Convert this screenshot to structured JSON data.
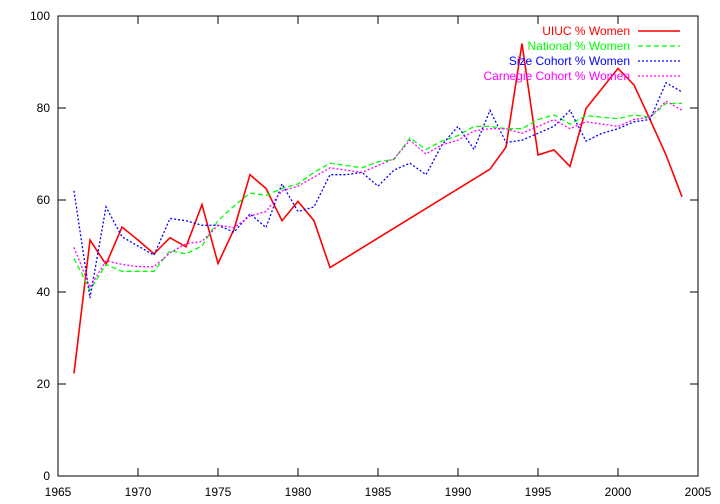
{
  "chart_data": {
    "type": "line",
    "title": "",
    "xlabel": "",
    "ylabel": "",
    "xlim": [
      1965,
      2005
    ],
    "ylim": [
      0,
      100
    ],
    "x_ticks": [
      1965,
      1970,
      1975,
      1980,
      1985,
      1990,
      1995,
      2000,
      2005
    ],
    "y_ticks": [
      0,
      20,
      40,
      60,
      80,
      100
    ],
    "x_tick_labels": [
      "1965",
      "1970",
      "1975",
      "1980",
      "1985",
      "1990",
      "1995",
      "2000",
      "2005"
    ],
    "y_tick_labels": [
      "0",
      "20",
      "40",
      "60",
      "80",
      "100"
    ],
    "grid": false,
    "legend_position": "top-right",
    "series": [
      {
        "name": "UIUC % Women",
        "color": "#ff0000",
        "dash": "solid",
        "points": [
          [
            1966,
            22.3
          ],
          [
            1967,
            51.3
          ],
          [
            1968,
            46.0
          ],
          [
            1969,
            54.1
          ],
          [
            1970,
            51.3
          ],
          [
            1971,
            48.3
          ],
          [
            1972,
            51.8
          ],
          [
            1973,
            49.8
          ],
          [
            1974,
            59.0
          ],
          [
            1975,
            46.2
          ],
          [
            1976,
            53.6
          ],
          [
            1977,
            65.5
          ],
          [
            1978,
            62.5
          ],
          [
            1979,
            55.5
          ],
          [
            1980,
            59.7
          ],
          [
            1981,
            55.5
          ],
          [
            1982,
            45.3
          ],
          [
            1992,
            66.7
          ],
          [
            1993,
            71.5
          ],
          [
            1994,
            94.0
          ],
          [
            1995,
            69.8
          ],
          [
            1996,
            70.9
          ],
          [
            1997,
            67.3
          ],
          [
            1998,
            79.9
          ],
          [
            2000,
            88.6
          ],
          [
            2001,
            85.0
          ],
          [
            2002,
            77.5
          ],
          [
            2003,
            69.8
          ],
          [
            2004,
            60.7
          ]
        ]
      },
      {
        "name": "National % Women",
        "color": "#00ff00",
        "dash": "dashed",
        "points": [
          [
            1966,
            47.3
          ],
          [
            1967,
            40.4
          ],
          [
            1968,
            46.0
          ],
          [
            1969,
            44.5
          ],
          [
            1970,
            44.5
          ],
          [
            1971,
            44.5
          ],
          [
            1972,
            49.0
          ],
          [
            1973,
            48.3
          ],
          [
            1974,
            50.0
          ],
          [
            1975,
            55.5
          ],
          [
            1976,
            58.7
          ],
          [
            1977,
            61.5
          ],
          [
            1978,
            61.0
          ],
          [
            1979,
            62.5
          ],
          [
            1980,
            63.5
          ],
          [
            1981,
            66.0
          ],
          [
            1982,
            68.0
          ],
          [
            1983,
            67.5
          ],
          [
            1984,
            67.0
          ],
          [
            1985,
            68.3
          ],
          [
            1986,
            68.8
          ],
          [
            1987,
            73.5
          ],
          [
            1988,
            71.0
          ],
          [
            1989,
            72.8
          ],
          [
            1990,
            74.0
          ],
          [
            1991,
            76.0
          ],
          [
            1992,
            76.0
          ],
          [
            1993,
            75.5
          ],
          [
            1994,
            75.5
          ],
          [
            1995,
            77.5
          ],
          [
            1996,
            78.5
          ],
          [
            1997,
            76.5
          ],
          [
            1998,
            78.3
          ],
          [
            1999,
            78.0
          ],
          [
            2000,
            77.7
          ],
          [
            2001,
            78.5
          ],
          [
            2002,
            78.0
          ],
          [
            2003,
            81.0
          ],
          [
            2004,
            81.0
          ]
        ]
      },
      {
        "name": "Size Cohort % Women",
        "color": "#0000ff",
        "dash": "dotted",
        "points": [
          [
            1966,
            62.0
          ],
          [
            1967,
            38.7
          ],
          [
            1968,
            58.5
          ],
          [
            1969,
            52.0
          ],
          [
            1970,
            50.0
          ],
          [
            1971,
            48.0
          ],
          [
            1972,
            56.0
          ],
          [
            1973,
            55.5
          ],
          [
            1974,
            54.5
          ],
          [
            1975,
            54.5
          ],
          [
            1976,
            53.0
          ],
          [
            1977,
            57.0
          ],
          [
            1978,
            54.0
          ],
          [
            1979,
            63.5
          ],
          [
            1980,
            57.5
          ],
          [
            1981,
            58.5
          ],
          [
            1982,
            65.5
          ],
          [
            1983,
            65.5
          ],
          [
            1984,
            66.0
          ],
          [
            1985,
            63.0
          ],
          [
            1986,
            66.5
          ],
          [
            1987,
            68.0
          ],
          [
            1988,
            65.5
          ],
          [
            1989,
            72.0
          ],
          [
            1990,
            76.0
          ],
          [
            1991,
            71.0
          ],
          [
            1992,
            79.5
          ],
          [
            1993,
            72.5
          ],
          [
            1994,
            73.0
          ],
          [
            1995,
            74.5
          ],
          [
            1996,
            76.0
          ],
          [
            1997,
            79.5
          ],
          [
            1998,
            72.8
          ],
          [
            1999,
            74.5
          ],
          [
            2000,
            75.5
          ],
          [
            2001,
            77.0
          ],
          [
            2002,
            77.5
          ],
          [
            2003,
            85.5
          ],
          [
            2004,
            83.5
          ]
        ]
      },
      {
        "name": "Carnegie Cohort % Women",
        "color": "#ff00ff",
        "dash": "dotted",
        "points": [
          [
            1966,
            49.7
          ],
          [
            1967,
            41.0
          ],
          [
            1968,
            46.8
          ],
          [
            1969,
            46.0
          ],
          [
            1970,
            45.5
          ],
          [
            1971,
            45.5
          ],
          [
            1972,
            48.5
          ],
          [
            1973,
            50.5
          ],
          [
            1974,
            51.0
          ],
          [
            1975,
            54.5
          ],
          [
            1976,
            54.0
          ],
          [
            1977,
            56.5
          ],
          [
            1978,
            57.5
          ],
          [
            1979,
            62.0
          ],
          [
            1980,
            63.0
          ],
          [
            1981,
            65.0
          ],
          [
            1982,
            67.0
          ],
          [
            1983,
            66.5
          ],
          [
            1984,
            66.0
          ],
          [
            1985,
            67.5
          ],
          [
            1986,
            69.0
          ],
          [
            1987,
            73.0
          ],
          [
            1988,
            70.0
          ],
          [
            1989,
            72.0
          ],
          [
            1990,
            73.0
          ],
          [
            1991,
            75.0
          ],
          [
            1992,
            75.5
          ],
          [
            1993,
            75.5
          ],
          [
            1994,
            74.5
          ],
          [
            1995,
            76.0
          ],
          [
            1996,
            77.5
          ],
          [
            1997,
            75.5
          ],
          [
            1998,
            77.0
          ],
          [
            1999,
            76.5
          ],
          [
            2000,
            76.0
          ],
          [
            2001,
            77.5
          ],
          [
            2002,
            78.0
          ],
          [
            2003,
            81.5
          ],
          [
            2004,
            79.5
          ]
        ]
      }
    ]
  }
}
